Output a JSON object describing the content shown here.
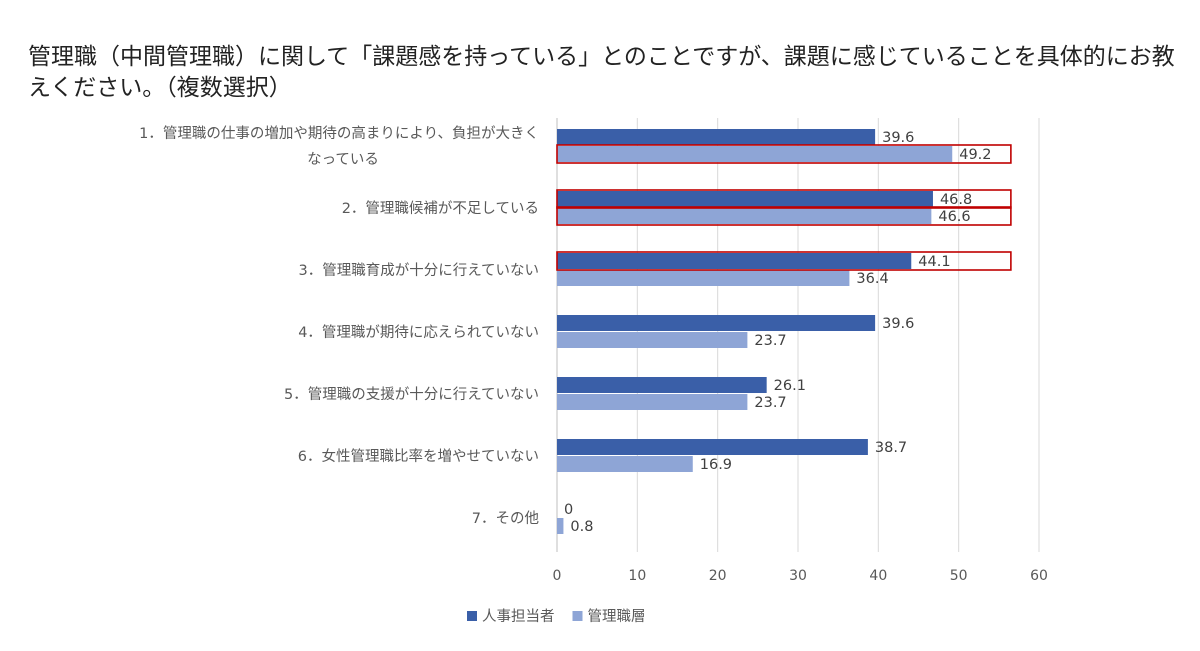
{
  "chart_data": {
    "type": "bar",
    "orientation": "horizontal",
    "title": "管理職（中間管理職）に関して「課題感を持っている」とのことですが、課題に感じていることを具体的にお教えください。（複数選択）",
    "categories": [
      [
        "1．管理職の仕事の増加や期待の高まりにより、負担が大きく",
        "なっている"
      ],
      [
        "2．管理職候補が不足している"
      ],
      [
        "3．管理職育成が十分に行えていない"
      ],
      [
        "4．管理職が期待に応えられていない"
      ],
      [
        "5．管理職の支援が十分に行えていない"
      ],
      [
        "6．女性管理職比率を増やせていない"
      ],
      [
        "7．その他"
      ]
    ],
    "series": [
      {
        "name": "人事担当者",
        "color": "#3A5FA8",
        "values": [
          39.6,
          46.8,
          44.1,
          39.6,
          26.1,
          38.7,
          0
        ]
      },
      {
        "name": "管理職層",
        "color": "#8EA5D6",
        "values": [
          49.2,
          46.6,
          36.4,
          23.7,
          23.7,
          16.9,
          0.8
        ]
      }
    ],
    "value_labels": [
      [
        "39.6",
        "46.8",
        "44.1",
        "39.6",
        "26.1",
        "38.7",
        "0"
      ],
      [
        "49.2",
        "46.6",
        "36.4",
        "23.7",
        "23.7",
        "16.9",
        "0.8"
      ]
    ],
    "xlim": [
      0,
      60
    ],
    "xticks": [
      0,
      10,
      20,
      30,
      40,
      50,
      60
    ],
    "grid": true,
    "legend": "bottom",
    "highlight_color": "#C00000",
    "highlights": [
      {
        "category": 0,
        "series": 1
      },
      {
        "category": 1,
        "series": 0
      },
      {
        "category": 1,
        "series": 1
      },
      {
        "category": 2,
        "series": 0
      }
    ]
  }
}
